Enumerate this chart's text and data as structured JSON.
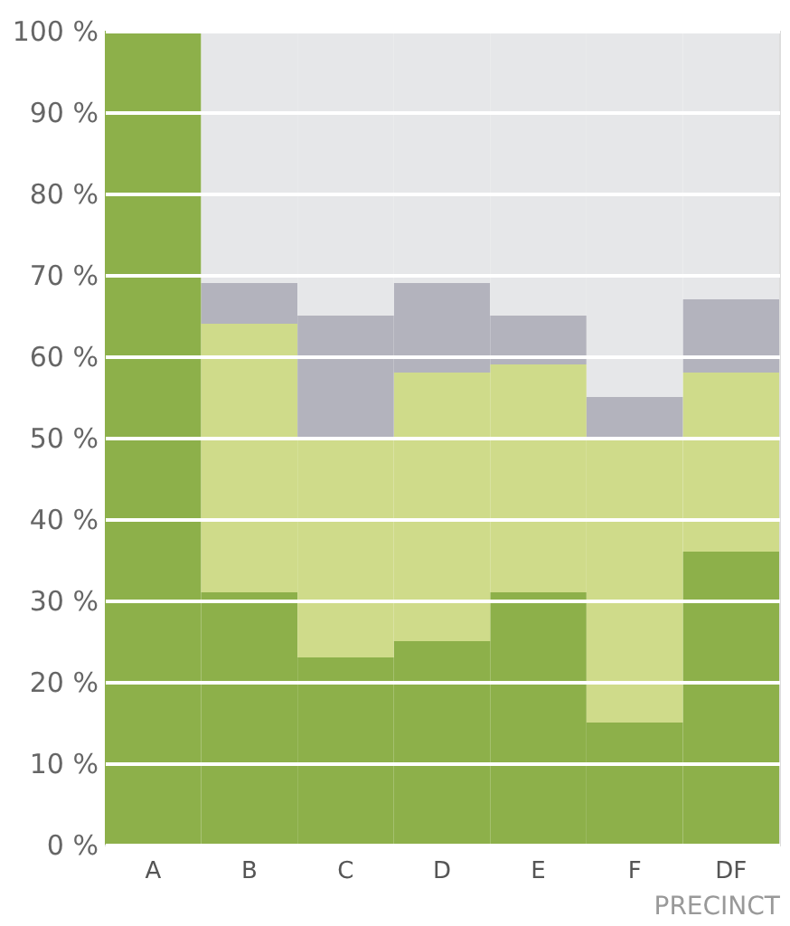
{
  "chart_data": {
    "type": "bar",
    "stacked": true,
    "xlabel": "PRECINCT",
    "categories": [
      "A",
      "B",
      "C",
      "D",
      "E",
      "F",
      "DF"
    ],
    "series": [
      {
        "color": "#8db04a",
        "values": [
          100,
          31,
          23,
          25,
          31,
          15,
          36
        ]
      },
      {
        "color": "#cfdb8a",
        "values": [
          0,
          33,
          27,
          33,
          28,
          35,
          22
        ]
      },
      {
        "color": "#b3b3bd",
        "values": [
          0,
          5,
          15,
          11,
          6,
          5,
          9
        ]
      },
      {
        "color": "#e6e7e9",
        "values": [
          0,
          31,
          35,
          31,
          35,
          45,
          33
        ]
      }
    ],
    "ylim": [
      0,
      100
    ],
    "yticks": [
      {
        "value": 0,
        "label": "0 %"
      },
      {
        "value": 10,
        "label": "10 %"
      },
      {
        "value": 20,
        "label": "20 %"
      },
      {
        "value": 30,
        "label": "30 %"
      },
      {
        "value": 40,
        "label": "40 %"
      },
      {
        "value": 50,
        "label": "50 %"
      },
      {
        "value": 60,
        "label": "60 %"
      },
      {
        "value": 70,
        "label": "70 %"
      },
      {
        "value": 80,
        "label": "80 %"
      },
      {
        "value": 90,
        "label": "90 %"
      },
      {
        "value": 100,
        "label": "100 %"
      }
    ],
    "grid": "y",
    "legend": false
  }
}
